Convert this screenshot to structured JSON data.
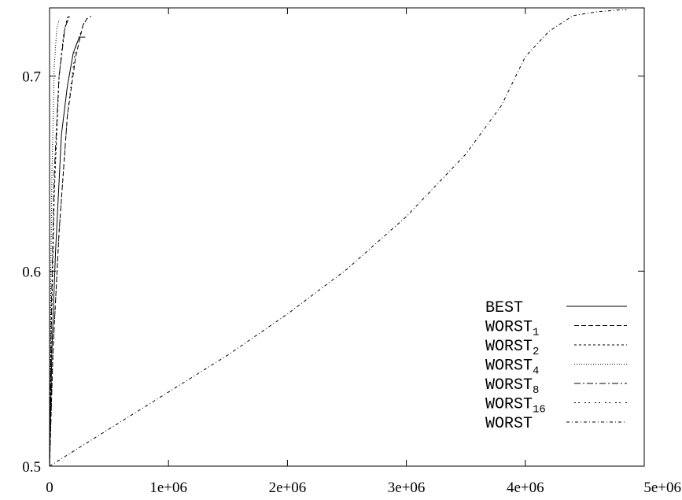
{
  "chart_data": {
    "type": "line",
    "title": "",
    "xlabel": "",
    "ylabel": "",
    "xlim": [
      0,
      5000000
    ],
    "ylim": [
      0.5,
      0.735
    ],
    "x_ticks": [
      {
        "value": 0,
        "label": "0"
      },
      {
        "value": 1000000,
        "label": "1e+06"
      },
      {
        "value": 2000000,
        "label": "2e+06"
      },
      {
        "value": 3000000,
        "label": "3e+06"
      },
      {
        "value": 4000000,
        "label": "4e+06"
      },
      {
        "value": 5000000,
        "label": "5e+06"
      }
    ],
    "y_ticks": [
      {
        "value": 0.5,
        "label": "0.5"
      },
      {
        "value": 0.6,
        "label": "0.6"
      },
      {
        "value": 0.7,
        "label": "0.7"
      }
    ],
    "grid": false,
    "legend_position": "bottom-right",
    "series": [
      {
        "name": "BEST",
        "name_base": "BEST",
        "name_sub": "",
        "dash": "",
        "x": [
          0,
          20000,
          50000,
          100000,
          150000,
          200000,
          250000,
          300000
        ],
        "y": [
          0.5,
          0.56,
          0.61,
          0.67,
          0.695,
          0.712,
          0.72,
          0.72
        ]
      },
      {
        "name": "WORST1",
        "name_base": "WORST",
        "name_sub": "1",
        "dash": "6,3",
        "x": [
          0,
          30000,
          80000,
          150000,
          220000,
          280000,
          320000
        ],
        "y": [
          0.5,
          0.56,
          0.62,
          0.68,
          0.71,
          0.726,
          0.73
        ]
      },
      {
        "name": "WORST2",
        "name_base": "WORST",
        "name_sub": "2",
        "dash": "3,3",
        "x": [
          0,
          15000,
          40000,
          80000,
          120000,
          150000,
          170000
        ],
        "y": [
          0.5,
          0.57,
          0.64,
          0.7,
          0.722,
          0.73,
          0.731
        ]
      },
      {
        "name": "WORST4",
        "name_base": "WORST",
        "name_sub": "4",
        "dash": "1,2",
        "x": [
          0,
          8000,
          20000,
          40000,
          60000,
          80000
        ],
        "y": [
          0.5,
          0.58,
          0.65,
          0.705,
          0.724,
          0.729
        ]
      },
      {
        "name": "WORST8",
        "name_base": "WORST",
        "name_sub": "8",
        "dash": "8,3,2,3",
        "x": [
          0,
          15000,
          40000,
          80000,
          130000,
          170000
        ],
        "y": [
          0.5,
          0.58,
          0.65,
          0.7,
          0.725,
          0.731
        ]
      },
      {
        "name": "WORST16",
        "name_base": "WORST",
        "name_sub": "16",
        "dash": "2,3,2,6",
        "x": [
          0,
          30000,
          80000,
          150000,
          220000,
          300000,
          360000
        ],
        "y": [
          0.5,
          0.56,
          0.62,
          0.68,
          0.715,
          0.729,
          0.731
        ]
      },
      {
        "name": "WORST",
        "name_base": "WORST",
        "name_sub": "",
        "dash": "4,3,1,3",
        "x": [
          0,
          500000,
          1000000,
          1500000,
          2000000,
          2500000,
          3000000,
          3500000,
          3800000,
          4000000,
          4200000,
          4400000,
          4600000,
          4800000,
          4850000
        ],
        "y": [
          0.5,
          0.519,
          0.538,
          0.557,
          0.578,
          0.601,
          0.628,
          0.66,
          0.685,
          0.71,
          0.723,
          0.731,
          0.733,
          0.734,
          0.734
        ]
      }
    ]
  }
}
